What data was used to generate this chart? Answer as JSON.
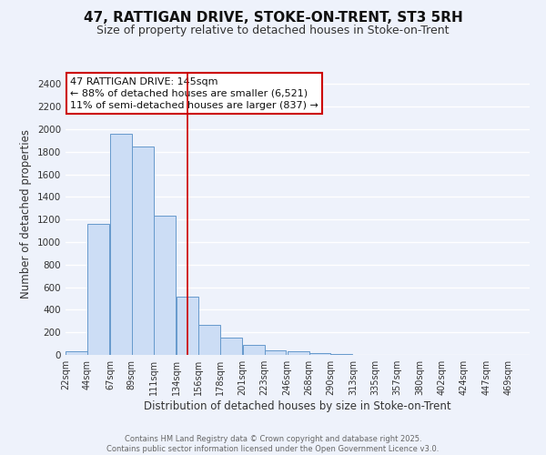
{
  "title": "47, RATTIGAN DRIVE, STOKE-ON-TRENT, ST3 5RH",
  "subtitle": "Size of property relative to detached houses in Stoke-on-Trent",
  "xlabel": "Distribution of detached houses by size in Stoke-on-Trent",
  "ylabel": "Number of detached properties",
  "bar_values": [
    30,
    1160,
    1960,
    1850,
    1230,
    520,
    270,
    150,
    85,
    40,
    30,
    15,
    8,
    4,
    2,
    1,
    0,
    0,
    0,
    0
  ],
  "bin_left_edges": [
    22,
    44,
    67,
    89,
    111,
    134,
    156,
    178,
    201,
    223,
    246,
    268,
    290,
    313,
    335,
    357,
    380,
    402,
    424,
    447
  ],
  "bin_width": 22,
  "tick_labels": [
    "22sqm",
    "44sqm",
    "67sqm",
    "89sqm",
    "111sqm",
    "134sqm",
    "156sqm",
    "178sqm",
    "201sqm",
    "223sqm",
    "246sqm",
    "268sqm",
    "290sqm",
    "313sqm",
    "335sqm",
    "357sqm",
    "380sqm",
    "402sqm",
    "424sqm",
    "447sqm",
    "469sqm"
  ],
  "xtick_positions": [
    22,
    44,
    67,
    89,
    111,
    134,
    156,
    178,
    201,
    223,
    246,
    268,
    290,
    313,
    335,
    357,
    380,
    402,
    424,
    447,
    469
  ],
  "bar_color": "#ccddf5",
  "bar_edge_color": "#6699cc",
  "vline_x": 145,
  "vline_color": "#cc0000",
  "ylim": [
    0,
    2500
  ],
  "xlim": [
    22,
    491
  ],
  "yticks": [
    0,
    200,
    400,
    600,
    800,
    1000,
    1200,
    1400,
    1600,
    1800,
    2000,
    2200,
    2400
  ],
  "annotation_text": "47 RATTIGAN DRIVE: 145sqm\n← 88% of detached houses are smaller (6,521)\n11% of semi-detached houses are larger (837) →",
  "annotation_box_color": "white",
  "annotation_box_edge": "#cc0000",
  "bg_color": "#eef2fb",
  "grid_color": "#ffffff",
  "footer_text": "Contains HM Land Registry data © Crown copyright and database right 2025.\nContains public sector information licensed under the Open Government Licence v3.0.",
  "title_fontsize": 11,
  "subtitle_fontsize": 9,
  "xlabel_fontsize": 8.5,
  "ylabel_fontsize": 8.5,
  "tick_fontsize": 7,
  "annotation_fontsize": 8,
  "footer_fontsize": 6
}
